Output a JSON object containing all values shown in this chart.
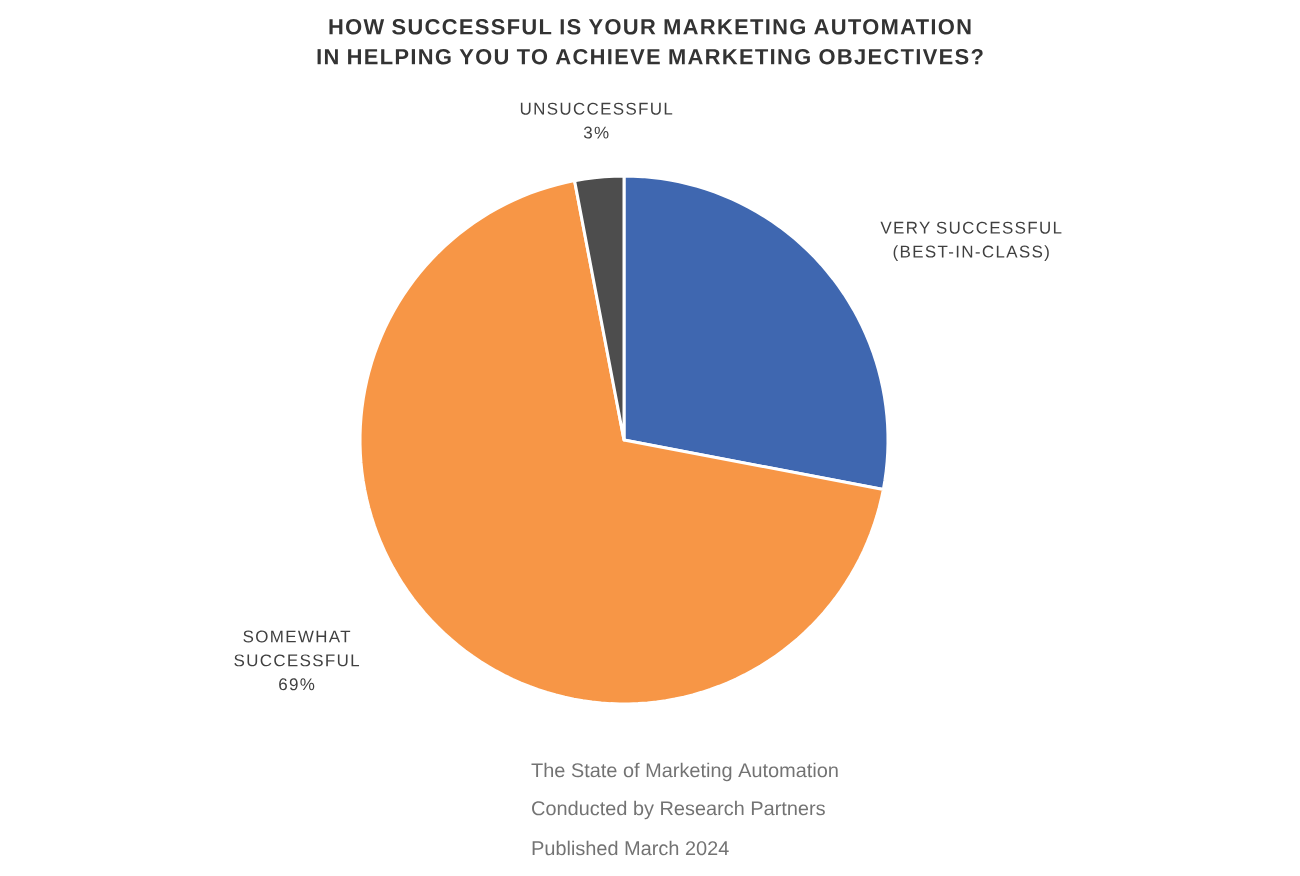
{
  "chart_data": {
    "type": "pie",
    "title": "HOW SUCCESSFUL IS YOUR MARKETING AUTOMATION IN HELPING YOU TO ACHIEVE MARKETING OBJECTIVES?",
    "categories": [
      "VERY SUCCESSFUL (BEST-IN-CLASS)",
      "SOMEWHAT SUCCESSFUL",
      "UNSUCCESSFUL"
    ],
    "values": [
      28,
      69,
      3
    ],
    "colors": [
      "#3f67b0",
      "#f79646",
      "#4d4d4d"
    ],
    "value_labels": [
      null,
      "69%",
      "3%"
    ],
    "annotations": [
      "The State of Marketing Automation",
      "Conducted by Research Partners",
      "Published March 2024"
    ]
  }
}
